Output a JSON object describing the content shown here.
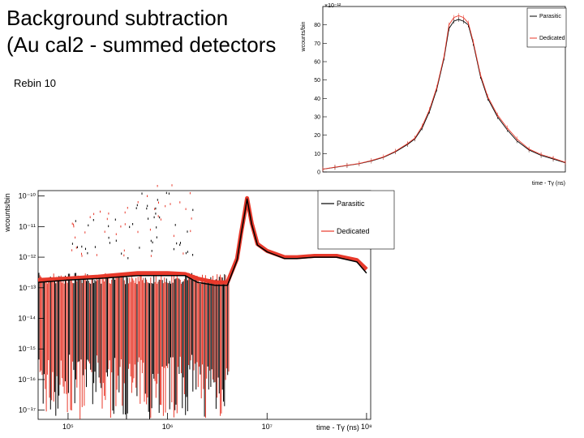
{
  "slide": {
    "title_line1": "Background subtraction",
    "title_line2": "(Au cal2 - summed detectors",
    "note": "Rebin 10"
  },
  "colors": {
    "parasitic": "#000000",
    "dedicated": "#e8392b",
    "frame": "#000000"
  },
  "chart_data": [
    {
      "type": "line",
      "name": "inset-linear-peak",
      "title": "",
      "xlabel": "time - Tγ (ns)",
      "ylabel": "wcounts/bin",
      "y_multiplier": "×10⁻¹²",
      "yscale": "linear",
      "ylim": [
        0,
        90
      ],
      "yticks": [
        "0",
        "10",
        "20",
        "30",
        "40",
        "50",
        "60",
        "70",
        "80"
      ],
      "legend": {
        "position": "top-right",
        "entries": [
          "Parasitic",
          "Dedicated"
        ]
      },
      "x": [
        0,
        0.05,
        0.1,
        0.15,
        0.2,
        0.25,
        0.3,
        0.35,
        0.38,
        0.41,
        0.44,
        0.47,
        0.5,
        0.52,
        0.54,
        0.56,
        0.58,
        0.6,
        0.62,
        0.65,
        0.68,
        0.72,
        0.76,
        0.8,
        0.85,
        0.9,
        0.95,
        1.0
      ],
      "series": [
        {
          "name": "Parasitic",
          "values": [
            1.5,
            2.5,
            3.5,
            4.5,
            6,
            8,
            11,
            15,
            18,
            24,
            33,
            45,
            62,
            78,
            82,
            83,
            82,
            80,
            70,
            52,
            40,
            30,
            23,
            17,
            12,
            9,
            7,
            5
          ]
        },
        {
          "name": "Dedicated",
          "values": [
            1.5,
            2.6,
            3.6,
            4.6,
            6.2,
            8.2,
            11.3,
            15.5,
            18.5,
            25,
            34,
            46,
            63,
            80,
            84,
            85,
            84,
            81,
            71,
            53,
            41,
            31,
            24,
            18,
            12.5,
            9.5,
            7.5,
            5.2
          ]
        }
      ]
    },
    {
      "type": "line",
      "name": "main-log-log",
      "title": "",
      "xlabel": "time - Tγ (ns)",
      "ylabel": "wcounts/bin",
      "xscale": "log",
      "yscale": "log",
      "xlim": [
        50000,
        110000000
      ],
      "ylim": [
        5e-18,
        1.5e-10
      ],
      "xticks": [
        {
          "label": "10⁵",
          "value": 100000
        },
        {
          "label": "10⁶",
          "value": 1000000
        },
        {
          "label": "10⁷",
          "value": 10000000
        },
        {
          "label": "10⁸",
          "value": 100000000
        }
      ],
      "yticks": [
        {
          "label": "10⁻¹⁰",
          "value": 1e-10
        },
        {
          "label": "10⁻¹¹",
          "value": 1e-11
        },
        {
          "label": "10⁻¹²",
          "value": 1e-12
        },
        {
          "label": "10⁻¹³",
          "value": 1e-13
        },
        {
          "label": "10⁻¹⁴",
          "value": 1e-14
        },
        {
          "label": "10⁻¹⁵",
          "value": 1e-15
        },
        {
          "label": "10⁻¹⁶",
          "value": 1e-16
        },
        {
          "label": "10⁻¹⁷",
          "value": 1e-17
        }
      ],
      "legend": {
        "position": "top-right",
        "entries": [
          "Parasitic",
          "Dedicated"
        ]
      },
      "x": [
        50000,
        100000,
        200000,
        500000,
        1000000,
        1500000,
        2000000,
        3000000,
        4000000,
        5000000,
        5500000,
        6000000,
        6300000,
        7000000,
        8000000,
        10000000,
        15000000,
        20000000,
        30000000,
        50000000,
        80000000,
        100000000
      ],
      "series": [
        {
          "name": "Parasitic",
          "values": [
            1.5e-13,
            1.8e-13,
            2e-13,
            2.5e-13,
            2.5e-13,
            2.5e-13,
            1.5e-13,
            1.2e-13,
            1.2e-13,
            8e-13,
            6e-12,
            3e-11,
            8e-11,
            1.2e-11,
            2.5e-12,
            1.5e-12,
            9e-13,
            9e-13,
            1e-12,
            1e-12,
            7e-13,
            3e-13
          ]
        },
        {
          "name": "Dedicated",
          "values": [
            1.8e-13,
            2e-13,
            2.3e-13,
            3e-13,
            3e-13,
            2.8e-13,
            2e-13,
            1.5e-13,
            1.5e-13,
            9e-13,
            6.5e-12,
            3.2e-11,
            8.5e-11,
            1.3e-11,
            2.7e-12,
            1.6e-12,
            1e-12,
            1e-12,
            1.1e-12,
            1.1e-12,
            8e-13,
            4e-13
          ]
        }
      ],
      "annotations": [
        "dense noise band between 10⁻¹³ and 10⁻¹⁷ for t < 4×10⁶ ns",
        "sparse outliers up to ~10⁻¹¹ near 10⁶ ns"
      ]
    }
  ]
}
